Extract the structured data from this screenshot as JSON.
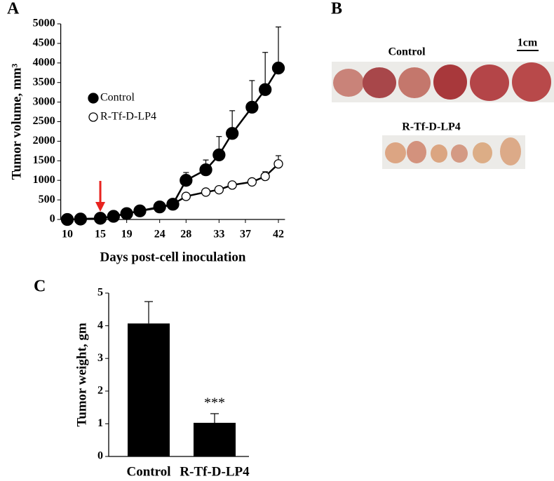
{
  "chart_data": [
    {
      "type": "line",
      "panel": "A",
      "ylabel": "Tumor volume, mm³",
      "xlabel": "Days post-cell inoculation",
      "x": [
        10,
        12,
        15,
        17,
        19,
        21,
        24,
        26,
        28,
        31,
        33,
        35,
        38,
        40,
        42
      ],
      "xlim": [
        9,
        43
      ],
      "xticks": [
        10,
        15,
        19,
        24,
        28,
        33,
        37,
        42
      ],
      "ylim": [
        0,
        5000
      ],
      "yticks": [
        0,
        500,
        1000,
        1500,
        2000,
        2500,
        3000,
        3500,
        4000,
        4500,
        5000
      ],
      "series": [
        {
          "name": "Control",
          "color": "#000000",
          "marker": "filled",
          "values": [
            0,
            10,
            30,
            80,
            150,
            220,
            320,
            390,
            1000,
            1270,
            1650,
            2200,
            2870,
            3320,
            3870
          ],
          "errors": [
            null,
            null,
            null,
            null,
            null,
            null,
            null,
            null,
            200,
            250,
            470,
            580,
            680,
            950,
            1050
          ]
        },
        {
          "name": "R-Tf-D-LP4",
          "color": "#000000",
          "marker": "open",
          "values": [
            0,
            10,
            30,
            80,
            150,
            220,
            300,
            390,
            590,
            700,
            760,
            880,
            960,
            1100,
            1420
          ],
          "errors": [
            null,
            null,
            null,
            null,
            null,
            null,
            null,
            null,
            50,
            50,
            50,
            50,
            50,
            120,
            210
          ]
        }
      ],
      "arrow": {
        "x": 15,
        "color": "#e8231f"
      }
    },
    {
      "type": "bar",
      "panel": "C",
      "ylabel": "Tumor weight, gm",
      "categories": [
        "Control",
        "R-Tf-D-LP4"
      ],
      "values": [
        4.07,
        1.03
      ],
      "errors": [
        0.67,
        0.28
      ],
      "color": "#000000",
      "ylim": [
        0,
        5
      ],
      "yticks": [
        0,
        1,
        2,
        3,
        4,
        5
      ],
      "significance": {
        "index": 1,
        "label": "***"
      }
    }
  ],
  "photo": {
    "panel": "B",
    "scale": "1cm",
    "groups": [
      "Control",
      "R-Tf-D-LP4"
    ]
  }
}
